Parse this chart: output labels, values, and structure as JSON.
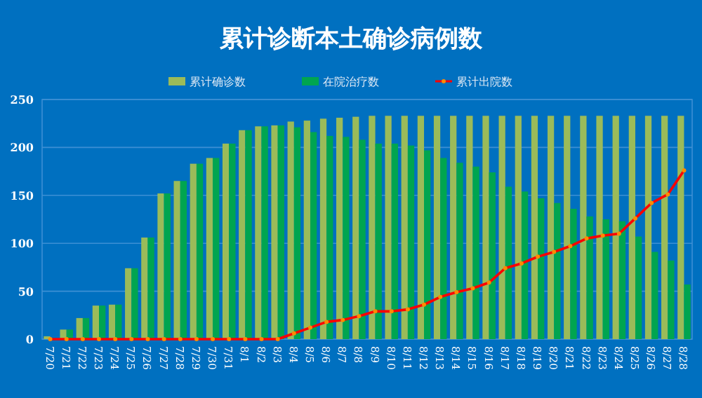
{
  "chart_data": {
    "type": "bar",
    "title": "累计诊断本土确诊病例数",
    "categories": [
      "7/20",
      "7/21",
      "7/22",
      "7/23",
      "7/24",
      "7/25",
      "7/26",
      "7/27",
      "7/28",
      "7/29",
      "7/30",
      "7/31",
      "8/1",
      "8/2",
      "8/3",
      "8/4",
      "8/5",
      "8/6",
      "8/7",
      "8/8",
      "8/9",
      "8/10",
      "8/11",
      "8/12",
      "8/13",
      "8/14",
      "8/15",
      "8/16",
      "8/17",
      "8/18",
      "8/19",
      "8/20",
      "8/21",
      "8/22",
      "8/23",
      "8/24",
      "8/25",
      "8/26",
      "8/27",
      "8/28"
    ],
    "series": [
      {
        "name": "累计确诊数",
        "color": "#9bbb59",
        "values": [
          3,
          10,
          22,
          35,
          36,
          74,
          106,
          152,
          165,
          183,
          189,
          204,
          218,
          222,
          223,
          227,
          228,
          230,
          231,
          232,
          233,
          233,
          233,
          233,
          233,
          233,
          233,
          233,
          233,
          233,
          233,
          233,
          233,
          233,
          233,
          233,
          233,
          233,
          233,
          233
        ]
      },
      {
        "name": "在院治疗数",
        "color": "#00a550",
        "values": [
          null,
          10,
          22,
          35,
          36,
          74,
          106,
          152,
          165,
          183,
          189,
          204,
          218,
          222,
          223,
          221,
          216,
          212,
          211,
          208,
          204,
          204,
          202,
          197,
          189,
          184,
          180,
          174,
          159,
          154,
          147,
          142,
          136,
          128,
          125,
          123,
          107,
          91,
          82,
          57
        ]
      },
      {
        "name": "累计出院数",
        "type": "line",
        "color": "#ff0000",
        "marker": "circle",
        "values": [
          0,
          0,
          0,
          0,
          0,
          0,
          0,
          0,
          0,
          0,
          0,
          0,
          0,
          0,
          0,
          6,
          12,
          18,
          20,
          24,
          29,
          29,
          31,
          36,
          44,
          49,
          53,
          59,
          74,
          79,
          86,
          91,
          97,
          105,
          108,
          110,
          126,
          142,
          151,
          176
        ]
      }
    ],
    "ylim": [
      0,
      250
    ],
    "yticks": [
      0,
      50,
      100,
      150,
      200,
      250
    ],
    "grid": "y",
    "legend": "top"
  }
}
